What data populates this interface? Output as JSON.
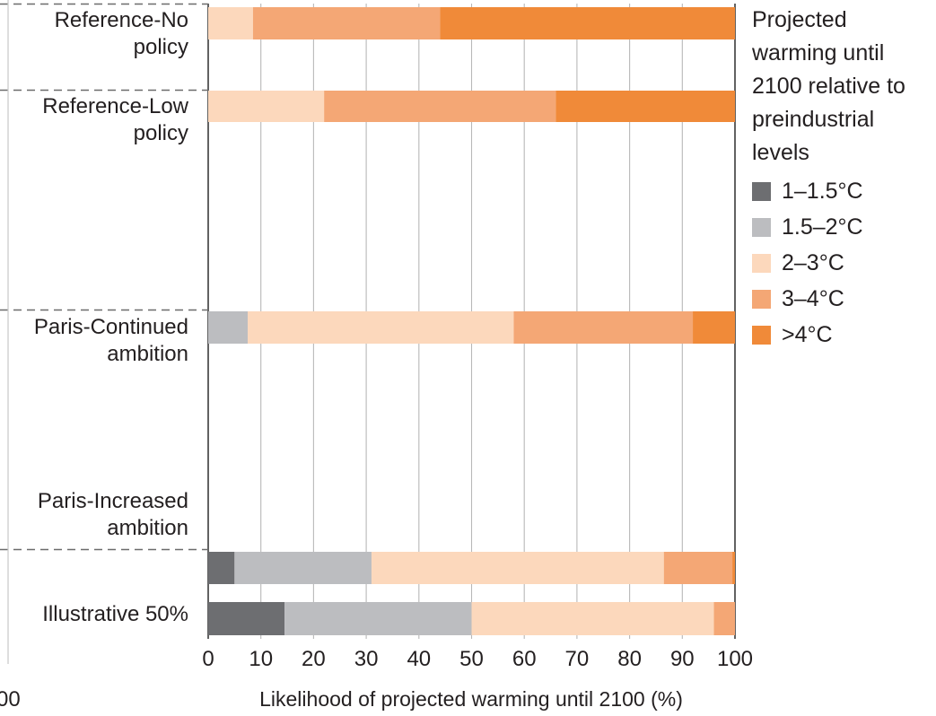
{
  "chart_data": {
    "type": "bar",
    "orientation": "horizontal",
    "stacked": true,
    "xlabel": "Likelihood of projected warming until 2100 (%)",
    "xlim": [
      0,
      100
    ],
    "x_ticks": [
      "0",
      "10",
      "20",
      "30",
      "40",
      "50",
      "60",
      "70",
      "80",
      "90",
      "100"
    ],
    "left_edge_fragment": "00",
    "grid": "vertical",
    "legend": {
      "position": "right",
      "title_lines": [
        "Projected",
        "warming until",
        "2100 relative to",
        "preindustrial",
        "levels"
      ]
    },
    "series": [
      {
        "name": "1–1.5°C",
        "color": "#6d6e71"
      },
      {
        "name": "1.5–2°C",
        "color": "#bcbdc0"
      },
      {
        "name": "2–3°C",
        "color": "#fcd8bc"
      },
      {
        "name": "3–4°C",
        "color": "#f4a775"
      },
      {
        "name": ">4°C",
        "color": "#f08a39"
      }
    ],
    "groups": [
      {
        "label_lines": [
          "Reference-No",
          "policy"
        ],
        "bars": [
          [
            0,
            0,
            8.5,
            35.5,
            56
          ]
        ]
      },
      {
        "label_lines": [
          "Reference-Low",
          "policy"
        ],
        "bars": [
          [
            0,
            0,
            22,
            44,
            34
          ]
        ]
      },
      {
        "label_lines": [
          "Paris-Continued",
          "ambition"
        ],
        "bars": [
          [
            0,
            7.5,
            50.5,
            34,
            8
          ]
        ]
      },
      {
        "label_lines": [
          "Paris-Increased",
          "ambition"
        ],
        "bars": [
          [
            5,
            26,
            55.5,
            13,
            0.5
          ]
        ]
      },
      {
        "label_lines": [
          "Illustrative 50%"
        ],
        "bars": [
          [
            14.5,
            35.5,
            46,
            4,
            0
          ]
        ]
      }
    ]
  }
}
